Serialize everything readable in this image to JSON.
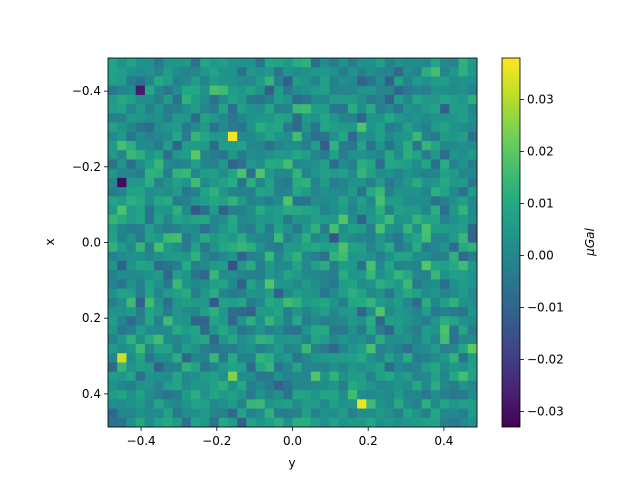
{
  "chart_data": {
    "type": "heatmap",
    "title": "",
    "xlabel": "y",
    "ylabel": "x",
    "xlim": [
      -0.4875,
      0.4875
    ],
    "ylim": [
      0.4875,
      -0.4875
    ],
    "x_ticks": [
      -0.4,
      -0.2,
      0.0,
      0.2,
      0.4
    ],
    "x_tick_labels": [
      "−0.4",
      "−0.2",
      "0.0",
      "0.2",
      "0.4"
    ],
    "y_ticks": [
      -0.4,
      -0.2,
      0.0,
      0.2,
      0.4
    ],
    "y_tick_labels": [
      "−0.4",
      "−0.2",
      "0.0",
      "0.2",
      "0.4"
    ],
    "grid": false,
    "colormap": "viridis",
    "grid_shape": [
      40,
      40
    ],
    "cell_size": 0.025,
    "value_range": [
      -0.033,
      0.038
    ],
    "noise_seed": 7,
    "highlights": [
      {
        "x": -0.2625,
        "y": -0.1375,
        "value": 0.037
      },
      {
        "x": 0.3375,
        "y": -0.4375,
        "value": 0.033
      },
      {
        "x": 0.4375,
        "y": 0.1875,
        "value": 0.036
      },
      {
        "x": -0.1375,
        "y": -0.4375,
        "value": -0.031
      },
      {
        "x": -0.4125,
        "y": -0.3875,
        "value": -0.028
      }
    ],
    "colorbar": {
      "label": "μGal",
      "ticks": [
        -0.03,
        -0.02,
        -0.01,
        0.0,
        0.01,
        0.02,
        0.03
      ],
      "tick_labels": [
        "−0.03",
        "−0.02",
        "−0.01",
        "0.00",
        "0.01",
        "0.02",
        "0.03"
      ]
    }
  }
}
